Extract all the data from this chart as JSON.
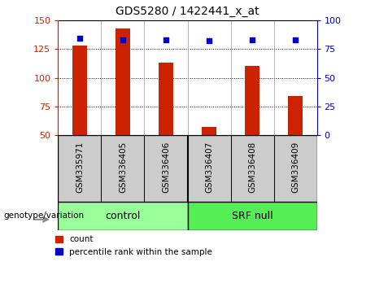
{
  "title": "GDS5280 / 1422441_x_at",
  "samples": [
    "GSM335971",
    "GSM336405",
    "GSM336406",
    "GSM336407",
    "GSM336408",
    "GSM336409"
  ],
  "counts": [
    128,
    143,
    113,
    57,
    110,
    84
  ],
  "percentile_ranks": [
    84,
    83,
    83,
    82,
    83,
    83
  ],
  "ylim_left": [
    50,
    150
  ],
  "ylim_right": [
    0,
    100
  ],
  "yticks_left": [
    50,
    75,
    100,
    125,
    150
  ],
  "yticks_right": [
    0,
    25,
    50,
    75,
    100
  ],
  "bar_color": "#cc2200",
  "dot_color": "#0000cc",
  "groups": [
    {
      "label": "control",
      "indices": [
        0,
        1,
        2
      ],
      "color": "#99ff99"
    },
    {
      "label": "SRF null",
      "indices": [
        3,
        4,
        5
      ],
      "color": "#55ee55"
    }
  ],
  "group_label": "genotype/variation",
  "bg_color": "#ffffff",
  "plot_bg": "#ffffff",
  "label_box_color": "#cccccc",
  "fig_bg": "#ffffff"
}
